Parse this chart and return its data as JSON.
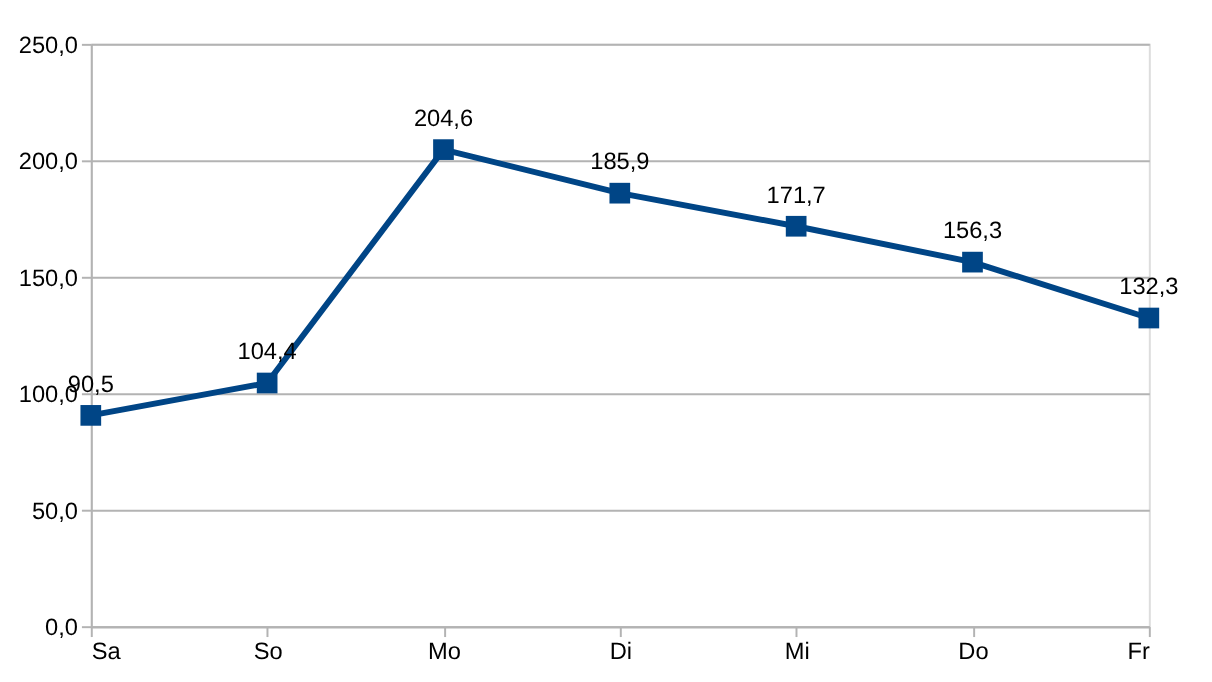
{
  "chart_data": {
    "type": "line",
    "categories": [
      "Sa",
      "So",
      "Mo",
      "Di",
      "Mi",
      "Do",
      "Fr"
    ],
    "series": [
      {
        "color": "#004586",
        "values": [
          90.5,
          104.4,
          204.6,
          185.9,
          171.7,
          156.3,
          132.3
        ],
        "value_labels": [
          "90,5",
          "104,4",
          "204,6",
          "185,9",
          "171,7",
          "156,3",
          "132,3"
        ]
      }
    ],
    "ylim": [
      0,
      250
    ],
    "yticks": [
      {
        "value": 0,
        "label": "0,0"
      },
      {
        "value": 50,
        "label": "50,0"
      },
      {
        "value": 100,
        "label": "100,0"
      },
      {
        "value": 150,
        "label": "150,0"
      },
      {
        "value": 200,
        "label": "200,0"
      },
      {
        "value": 250,
        "label": "250,0"
      }
    ],
    "grid": "y",
    "marker": "square",
    "line_style": "solid"
  }
}
